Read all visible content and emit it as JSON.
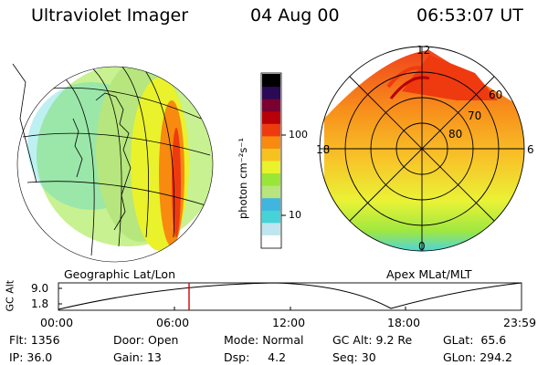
{
  "header": {
    "title": "Ultraviolet Imager",
    "date": "04 Aug 00",
    "time": "06:53:07 UT"
  },
  "left_panel": {
    "label": "Geographic Lat/Lon"
  },
  "right_panel": {
    "label": "Apex MLat/MLT",
    "mlt_labels": [
      "12",
      "18",
      "6",
      "0"
    ],
    "mlat_labels": [
      "60",
      "70",
      "80"
    ]
  },
  "colorbar": {
    "unit_label": "photon cm⁻²s⁻¹",
    "ticks": [
      "100",
      "10"
    ],
    "colors": [
      "#ffffff",
      "#bfe6ee",
      "#45d3d8",
      "#3fb5e0",
      "#b6e67d",
      "#9ae636",
      "#e9f22b",
      "#f7c21e",
      "#f78a0f",
      "#ef3a10",
      "#b80008",
      "#7a0030",
      "#2a0a55",
      "#000000"
    ]
  },
  "altitude_plot": {
    "y_axis_label": "GC Alt",
    "y_ticks": [
      "9.0",
      "1.8"
    ],
    "x_ticks": [
      "00:00",
      "06:00",
      "12:00",
      "18:00",
      "23:59"
    ],
    "marker_color": "#d00000"
  },
  "status": {
    "row1": [
      {
        "key": "Flt:",
        "value": "1356"
      },
      {
        "key": "Door:",
        "value": "Open"
      },
      {
        "key": "Mode:",
        "value": "Normal"
      },
      {
        "key": "GC Alt:",
        "value": "9.2 Re"
      },
      {
        "key": "GLat:",
        "value": "65.6"
      }
    ],
    "row2": [
      {
        "key": "IP:",
        "value": "36.0"
      },
      {
        "key": "Gain:",
        "value": "13"
      },
      {
        "key": "Dsp:",
        "value": "4.2"
      },
      {
        "key": "Seq:",
        "value": "30"
      },
      {
        "key": "GLon:",
        "value": "294.2"
      }
    ]
  }
}
